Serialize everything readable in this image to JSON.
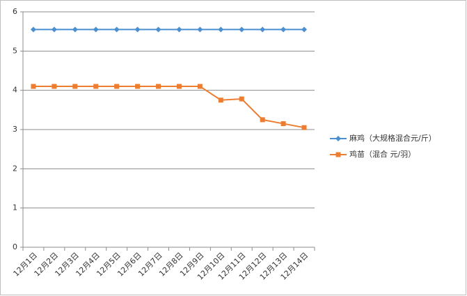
{
  "chart_data": {
    "type": "line",
    "categories": [
      "12月1日",
      "12月2日",
      "12月3日",
      "12月4日",
      "12月5日",
      "12月6日",
      "12月7日",
      "12月8日",
      "12月9日",
      "12月10日",
      "12月11日",
      "12月12日",
      "12月13日",
      "12月14日"
    ],
    "series": [
      {
        "name": "麻鸡（大规格混合元/斤）",
        "color": "#4a8fd1",
        "marker": "diamond",
        "values": [
          5.55,
          5.55,
          5.55,
          5.55,
          5.55,
          5.55,
          5.55,
          5.55,
          5.55,
          5.55,
          5.55,
          5.55,
          5.55,
          5.55
        ]
      },
      {
        "name": "鸡苗（混合 元/羽）",
        "color": "#ed7d31",
        "marker": "square",
        "values": [
          4.1,
          4.1,
          4.1,
          4.1,
          4.1,
          4.1,
          4.1,
          4.1,
          4.1,
          3.75,
          3.78,
          3.25,
          3.15,
          3.05
        ]
      }
    ],
    "ylim": [
      0,
      6
    ],
    "yticks": [
      0,
      1,
      2,
      3,
      4,
      5,
      6
    ],
    "grid": true,
    "legend": "right"
  }
}
